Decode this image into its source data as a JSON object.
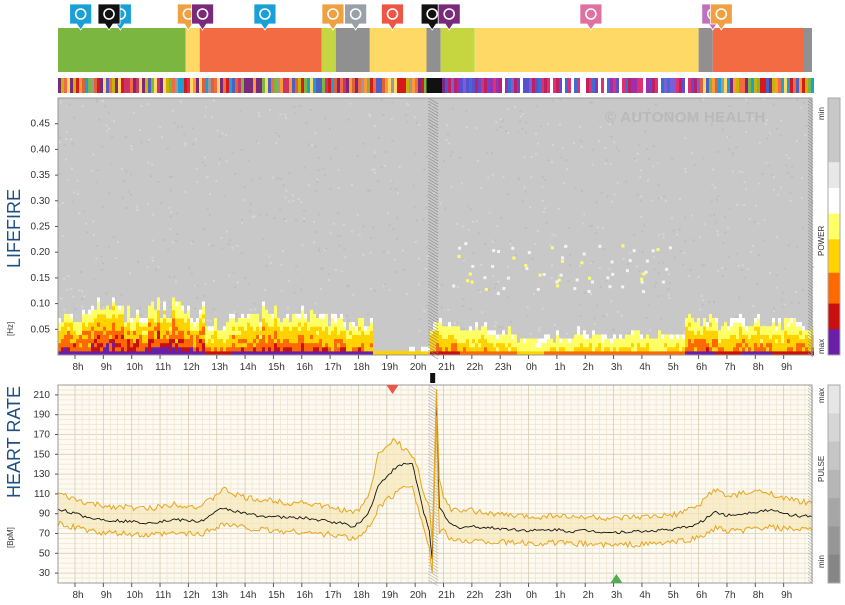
{
  "titles": {
    "top": "LIFEFIRE",
    "bottom": "HEART RATE",
    "top_unit": "[Hz]",
    "bottom_unit": "[BpM]"
  },
  "watermark": "© AUTONOM HEALTH",
  "scale_labels": {
    "top": {
      "min": "min",
      "mid": "POWER",
      "max": "max"
    },
    "bottom": {
      "max": "max",
      "mid": "PULSE",
      "min": "min"
    }
  },
  "activity_icons": [
    {
      "name": "meeting-icon",
      "color": "#1aa0d8",
      "hour": 9.6
    },
    {
      "name": "meal-icon",
      "color": "#f0a040",
      "hour": 12.0
    },
    {
      "name": "rest-icon",
      "color": "#7a2a7a",
      "hour": 12.5
    },
    {
      "name": "meeting-icon",
      "color": "#1aa0d8",
      "hour": 14.7
    },
    {
      "name": "meal-icon",
      "color": "#f0a040",
      "hour": 17.1
    },
    {
      "name": "screen-icon",
      "color": "#9aa0a8",
      "hour": 17.9
    },
    {
      "name": "exercise-icon",
      "color": "#ee5544",
      "hour": 19.2
    },
    {
      "name": "end-icon",
      "color": "#111111",
      "hour": 20.6
    },
    {
      "name": "rest-icon",
      "color": "#7a2a7a",
      "hour": 21.2
    },
    {
      "name": "sleep-icon",
      "color": "#e070a0",
      "hour": 2.2
    },
    {
      "name": "bath-icon",
      "color": "#c070c0",
      "hour": 6.5
    },
    {
      "name": "meal-icon",
      "color": "#f0a040",
      "hour": 6.8
    },
    {
      "name": "meeting-icon",
      "color": "#1aa0d8",
      "hour": 8.2
    },
    {
      "name": "end-icon",
      "color": "#111111",
      "hour": 9.2
    }
  ],
  "activity_bands": [
    {
      "from": 7.4,
      "to": 11.9,
      "color": "#7ab640"
    },
    {
      "from": 11.9,
      "to": 12.4,
      "color": "#ffd966"
    },
    {
      "from": 12.4,
      "to": 16.7,
      "color": "#f26b43"
    },
    {
      "from": 16.7,
      "to": 17.2,
      "color": "#c6d640"
    },
    {
      "from": 17.2,
      "to": 18.4,
      "color": "#909090"
    },
    {
      "from": 18.4,
      "to": 20.4,
      "color": "#ffd966"
    },
    {
      "from": 20.4,
      "to": 20.9,
      "color": "#909090"
    },
    {
      "from": 20.9,
      "to": 22.1,
      "color": "#c6d640"
    },
    {
      "from": 22.1,
      "to": 30.0,
      "color": "#ffd966"
    },
    {
      "from": 30.0,
      "to": 30.5,
      "color": "#909090"
    },
    {
      "from": 30.5,
      "to": 33.7,
      "color": "#f26b43"
    },
    {
      "from": 33.7,
      "to": 34.0,
      "color": "#909090"
    }
  ],
  "chart_data": [
    {
      "type": "heatmap",
      "title": "LIFEFIRE",
      "ylabel": "[Hz]",
      "x_start_hour": 7.4,
      "x_end_hour": 34.0,
      "x_ticks": [
        "8h",
        "9h",
        "10h",
        "11h",
        "12h",
        "13h",
        "14h",
        "15h",
        "16h",
        "17h",
        "18h",
        "19h",
        "20h",
        "21h",
        "22h",
        "23h",
        "0h",
        "1h",
        "2h",
        "3h",
        "4h",
        "5h",
        "6h",
        "7h",
        "8h",
        "9h"
      ],
      "y_ticks": [
        0.05,
        0.1,
        0.15,
        0.2,
        0.25,
        0.3,
        0.35,
        0.4,
        0.45
      ],
      "ylim": [
        0,
        0.5
      ],
      "low_freq_power_by_hour": [
        {
          "hour": 8,
          "level": 0.8
        },
        {
          "hour": 9,
          "level": 0.9
        },
        {
          "hour": 10,
          "level": 0.85
        },
        {
          "hour": 11,
          "level": 0.95
        },
        {
          "hour": 12,
          "level": 0.8
        },
        {
          "hour": 13,
          "level": 0.6
        },
        {
          "hour": 14,
          "level": 0.7
        },
        {
          "hour": 15,
          "level": 0.8
        },
        {
          "hour": 16,
          "level": 0.75
        },
        {
          "hour": 17,
          "level": 0.7
        },
        {
          "hour": 18,
          "level": 0.65
        },
        {
          "hour": 19,
          "level": 0.1
        },
        {
          "hour": 20,
          "level": 0.15
        },
        {
          "hour": 21,
          "level": 0.6
        },
        {
          "hour": 22,
          "level": 0.5
        },
        {
          "hour": 23,
          "level": 0.45
        },
        {
          "hour": 24,
          "level": 0.3
        },
        {
          "hour": 25,
          "level": 0.35
        },
        {
          "hour": 26,
          "level": 0.4
        },
        {
          "hour": 27,
          "level": 0.35
        },
        {
          "hour": 28,
          "level": 0.4
        },
        {
          "hour": 29,
          "level": 0.4
        },
        {
          "hour": 30,
          "level": 0.7
        },
        {
          "hour": 31,
          "level": 0.6
        },
        {
          "hour": 32,
          "level": 0.65
        },
        {
          "hour": 33,
          "level": 0.6
        }
      ]
    },
    {
      "type": "line",
      "title": "HEART RATE",
      "ylabel": "[BpM]",
      "x_start_hour": 7.4,
      "x_end_hour": 34.0,
      "x_ticks": [
        "8h",
        "9h",
        "10h",
        "11h",
        "12h",
        "13h",
        "14h",
        "15h",
        "16h",
        "17h",
        "18h",
        "19h",
        "20h",
        "21h",
        "22h",
        "23h",
        "0h",
        "1h",
        "2h",
        "3h",
        "4h",
        "5h",
        "6h",
        "7h",
        "8h",
        "9h"
      ],
      "y_ticks": [
        30,
        50,
        70,
        90,
        110,
        130,
        150,
        170,
        190,
        210
      ],
      "ylim": [
        20,
        220
      ],
      "series": [
        {
          "name": "",
          "color": "#111111",
          "points": [
            [
              7.4,
              95
            ],
            [
              8,
              90
            ],
            [
              8.5,
              86
            ],
            [
              9,
              84
            ],
            [
              9.5,
              83
            ],
            [
              10,
              82
            ],
            [
              10.5,
              81
            ],
            [
              11,
              82
            ],
            [
              11.5,
              84
            ],
            [
              12,
              83
            ],
            [
              12.4,
              82
            ],
            [
              12.8,
              88
            ],
            [
              13.2,
              96
            ],
            [
              13.6,
              93
            ],
            [
              14,
              90
            ],
            [
              14.5,
              88
            ],
            [
              15,
              87
            ],
            [
              15.5,
              86
            ],
            [
              16,
              86
            ],
            [
              16.5,
              84
            ],
            [
              17,
              82
            ],
            [
              17.5,
              80
            ],
            [
              17.8,
              77
            ],
            [
              18.1,
              82
            ],
            [
              18.4,
              94
            ],
            [
              18.7,
              118
            ],
            [
              19,
              128
            ],
            [
              19.3,
              136
            ],
            [
              19.6,
              140
            ],
            [
              19.9,
              141
            ],
            [
              20.1,
              116
            ],
            [
              20.3,
              92
            ],
            [
              20.5,
              72
            ],
            [
              20.6,
              45
            ],
            [
              20.75,
              205
            ],
            [
              20.85,
              95
            ],
            [
              21.0,
              90
            ],
            [
              21.2,
              80
            ],
            [
              21.5,
              76
            ],
            [
              22,
              77
            ],
            [
              22.5,
              76
            ],
            [
              23,
              75
            ],
            [
              23.5,
              74
            ],
            [
              24,
              73
            ],
            [
              24.5,
              73
            ],
            [
              25,
              74
            ],
            [
              25.5,
              72
            ],
            [
              26,
              73
            ],
            [
              26.5,
              72
            ],
            [
              27,
              71
            ],
            [
              27.5,
              72
            ],
            [
              28,
              72
            ],
            [
              28.5,
              73
            ],
            [
              29,
              74
            ],
            [
              29.5,
              76
            ],
            [
              30,
              80
            ],
            [
              30.3,
              86
            ],
            [
              30.6,
              92
            ],
            [
              31,
              88
            ],
            [
              31.5,
              90
            ],
            [
              32,
              92
            ],
            [
              32.5,
              94
            ],
            [
              33,
              90
            ],
            [
              33.5,
              88
            ],
            [
              34,
              87
            ]
          ]
        },
        {
          "name": "",
          "color": "#e7a51e",
          "points": [
            [
              7.4,
              110
            ],
            [
              8,
              104
            ],
            [
              8.5,
              100
            ],
            [
              9,
              98
            ],
            [
              9.5,
              97
            ],
            [
              10,
              96
            ],
            [
              10.5,
              95
            ],
            [
              11,
              97
            ],
            [
              11.5,
              100
            ],
            [
              12,
              98
            ],
            [
              12.4,
              97
            ],
            [
              12.8,
              104
            ],
            [
              13.2,
              115
            ],
            [
              13.6,
              110
            ],
            [
              14,
              106
            ],
            [
              14.5,
              104
            ],
            [
              15,
              103
            ],
            [
              15.5,
              101
            ],
            [
              16,
              102
            ],
            [
              16.5,
              99
            ],
            [
              17,
              96
            ],
            [
              17.5,
              94
            ],
            [
              17.8,
              90
            ],
            [
              18.1,
              96
            ],
            [
              18.4,
              112
            ],
            [
              18.7,
              150
            ],
            [
              19,
              160
            ],
            [
              19.3,
              165
            ],
            [
              19.6,
              155
            ],
            [
              19.9,
              150
            ],
            [
              20.1,
              135
            ],
            [
              20.3,
              110
            ],
            [
              20.5,
              95
            ],
            [
              20.6,
              60
            ],
            [
              20.75,
              215
            ],
            [
              20.85,
              125
            ],
            [
              21.0,
              108
            ],
            [
              21.2,
              96
            ],
            [
              21.5,
              92
            ],
            [
              22,
              93
            ],
            [
              22.5,
              91
            ],
            [
              23,
              89
            ],
            [
              23.5,
              88
            ],
            [
              24,
              87
            ],
            [
              24.5,
              87
            ],
            [
              25,
              89
            ],
            [
              25.5,
              86
            ],
            [
              26,
              87
            ],
            [
              26.5,
              86
            ],
            [
              27,
              84
            ],
            [
              27.5,
              86
            ],
            [
              28,
              86
            ],
            [
              28.5,
              87
            ],
            [
              29,
              88
            ],
            [
              29.5,
              92
            ],
            [
              30,
              98
            ],
            [
              30.3,
              108
            ],
            [
              30.6,
              115
            ],
            [
              31,
              107
            ],
            [
              31.5,
              110
            ],
            [
              32,
              112
            ],
            [
              32.5,
              112
            ],
            [
              33,
              105
            ],
            [
              33.5,
              103
            ],
            [
              34,
              100
            ]
          ]
        },
        {
          "name": "",
          "color": "#e7a51e",
          "points": [
            [
              7.4,
              80
            ],
            [
              8,
              76
            ],
            [
              8.5,
              73
            ],
            [
              9,
              70
            ],
            [
              9.5,
              70
            ],
            [
              10,
              69
            ],
            [
              10.5,
              68
            ],
            [
              11,
              69
            ],
            [
              11.5,
              70
            ],
            [
              12,
              70
            ],
            [
              12.4,
              69
            ],
            [
              12.8,
              74
            ],
            [
              13.2,
              80
            ],
            [
              13.6,
              78
            ],
            [
              14,
              76
            ],
            [
              14.5,
              74
            ],
            [
              15,
              73
            ],
            [
              15.5,
              72
            ],
            [
              16,
              72
            ],
            [
              16.5,
              70
            ],
            [
              17,
              69
            ],
            [
              17.5,
              67
            ],
            [
              17.8,
              64
            ],
            [
              18.1,
              68
            ],
            [
              18.4,
              78
            ],
            [
              18.7,
              96
            ],
            [
              19,
              104
            ],
            [
              19.3,
              110
            ],
            [
              19.6,
              118
            ],
            [
              19.9,
              120
            ],
            [
              20.1,
              96
            ],
            [
              20.3,
              76
            ],
            [
              20.5,
              55
            ],
            [
              20.6,
              30
            ],
            [
              20.75,
              190
            ],
            [
              20.85,
              70
            ],
            [
              21.0,
              72
            ],
            [
              21.2,
              66
            ],
            [
              21.5,
              62
            ],
            [
              22,
              63
            ],
            [
              22.5,
              62
            ],
            [
              23,
              61
            ],
            [
              23.5,
              61
            ],
            [
              24,
              60
            ],
            [
              24.5,
              60
            ],
            [
              25,
              61
            ],
            [
              25.5,
              59
            ],
            [
              26,
              60
            ],
            [
              26.5,
              59
            ],
            [
              27,
              58
            ],
            [
              27.5,
              59
            ],
            [
              28,
              59
            ],
            [
              28.5,
              60
            ],
            [
              29,
              61
            ],
            [
              29.5,
              63
            ],
            [
              30,
              66
            ],
            [
              30.3,
              70
            ],
            [
              30.6,
              76
            ],
            [
              31,
              72
            ],
            [
              31.5,
              73
            ],
            [
              32,
              75
            ],
            [
              32.5,
              76
            ],
            [
              33,
              75
            ],
            [
              33.5,
              74
            ],
            [
              34,
              73
            ]
          ]
        }
      ],
      "markers": [
        {
          "name": "max-marker",
          "hour": 19.2,
          "color": "#ee5544"
        },
        {
          "name": "min-marker",
          "hour": 27.1,
          "color": "#4caf50"
        }
      ]
    }
  ]
}
